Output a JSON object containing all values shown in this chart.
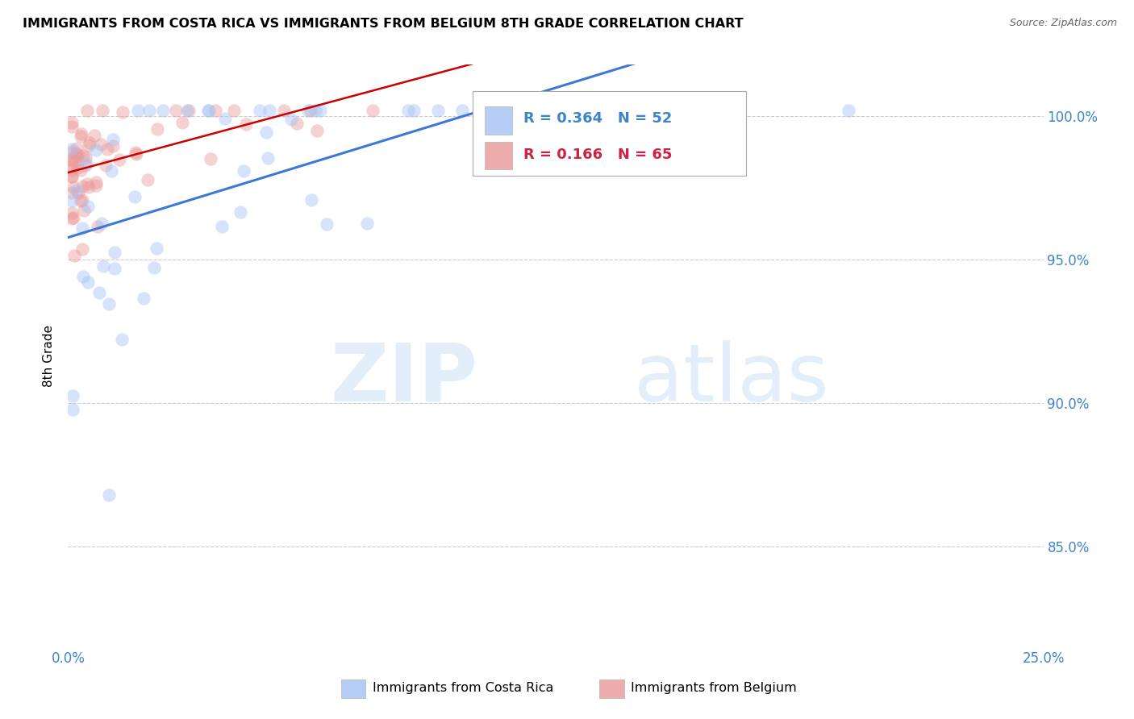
{
  "title": "IMMIGRANTS FROM COSTA RICA VS IMMIGRANTS FROM BELGIUM 8TH GRADE CORRELATION CHART",
  "source": "Source: ZipAtlas.com",
  "ylabel": "8th Grade",
  "yticks": [
    0.85,
    0.9,
    0.95,
    1.0
  ],
  "ytick_labels": [
    "85.0%",
    "90.0%",
    "95.0%",
    "100.0%"
  ],
  "xmin": 0.0,
  "xmax": 0.25,
  "ymin": 0.815,
  "ymax": 1.018,
  "legend1_label": "Immigrants from Costa Rica",
  "legend2_label": "Immigrants from Belgium",
  "R_costa_rica": 0.364,
  "N_costa_rica": 52,
  "R_belgium": 0.166,
  "N_belgium": 65,
  "blue_color": "#a4c2f4",
  "pink_color": "#ea9999",
  "blue_line_color": "#3c78d8",
  "pink_line_color": "#cc0000",
  "watermark_zip": "ZIP",
  "watermark_atlas": "atlas"
}
